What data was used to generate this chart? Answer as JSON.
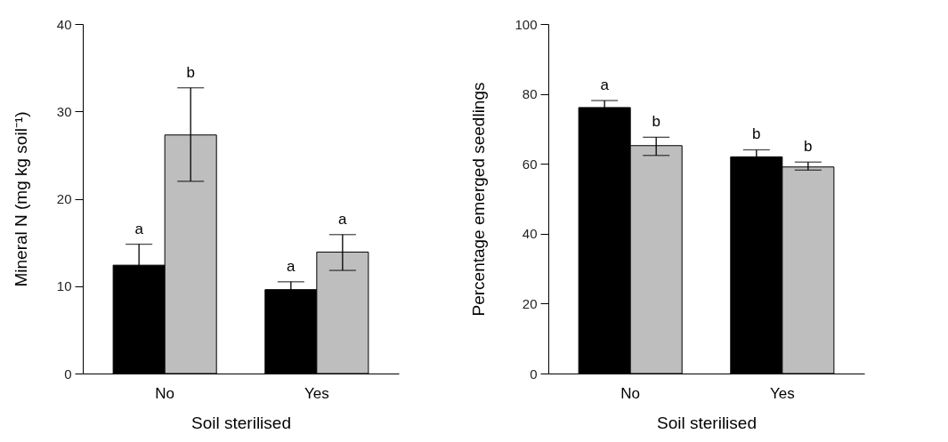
{
  "chart_data": [
    {
      "type": "bar",
      "xlabel": "Soil sterilised",
      "ylabel": "Mineral N (mg kg soil⁻¹)",
      "categories": [
        "No",
        "Yes"
      ],
      "ylim": [
        0,
        40
      ],
      "yticks": [
        0,
        10,
        20,
        30,
        40
      ],
      "grid": false,
      "legend": false,
      "series": [
        {
          "color": "#000000",
          "values": [
            12.4,
            9.6
          ],
          "errors": [
            2.4,
            0.9
          ]
        },
        {
          "color": "#bebebe",
          "values": [
            27.3,
            13.9
          ],
          "errors": [
            [
              22.0,
              32.7
            ],
            [
              11.8,
              15.9
            ]
          ]
        }
      ],
      "annotations": [
        "a",
        "b",
        "a",
        "a"
      ]
    },
    {
      "type": "bar",
      "xlabel": "Soil sterilised",
      "ylabel": "Percentage emerged seedlings",
      "categories": [
        "No",
        "Yes"
      ],
      "ylim": [
        0,
        100
      ],
      "yticks": [
        0,
        20,
        40,
        60,
        80,
        100
      ],
      "grid": false,
      "legend": false,
      "series": [
        {
          "color": "#000000",
          "values": [
            76.1,
            62.0
          ],
          "errors": [
            2.0,
            2.0
          ]
        },
        {
          "color": "#bebebe",
          "values": [
            65.2,
            59.1
          ],
          "errors": [
            [
              62.4,
              67.6
            ],
            [
              58.2,
              60.5
            ]
          ]
        }
      ],
      "annotations": [
        "a",
        "b",
        "b",
        "b"
      ]
    }
  ]
}
